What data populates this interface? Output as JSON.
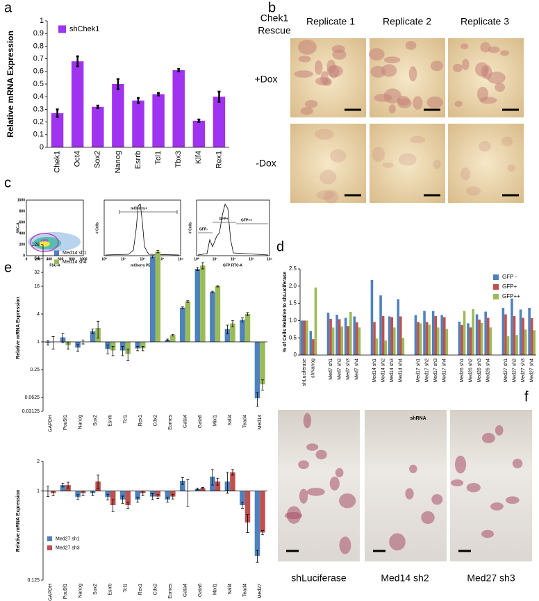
{
  "panel_labels": [
    "a",
    "b",
    "c",
    "d",
    "e",
    "f"
  ],
  "panel_b": {
    "title": [
      "Chek1",
      "Rescue"
    ],
    "columns": [
      "Replicate 1",
      "Replicate 2",
      "Replicate 3"
    ],
    "rows": [
      "+Dox",
      "-Dox"
    ]
  },
  "panel_c": {
    "plots": [
      {
        "xlabel": "FSC-A",
        "ylabel": "SSC-A",
        "gates": [
          "cells"
        ],
        "xticks": [
          "0",
          "200",
          "400",
          "600",
          "800",
          "1000"
        ],
        "yticks": [
          "0",
          "200",
          "400",
          "600",
          "800",
          "1000"
        ]
      },
      {
        "xlabel": "mCherry PE-A",
        "ylabel": "# Cells",
        "gates": [
          "mCherry+"
        ],
        "xticks": [
          "10⁰",
          "10¹",
          "10²",
          "10³",
          "10⁴"
        ]
      },
      {
        "xlabel": "GFP FITC-A",
        "ylabel": "# Cells",
        "gates": [
          "GFP-",
          "GFP+",
          "GFP++"
        ],
        "xticks": [
          "10⁰",
          "10¹",
          "10²",
          "10³",
          "10⁴"
        ]
      }
    ]
  },
  "panel_f": {
    "captions": [
      "shLuciferase",
      "Med14 sh2",
      "Med27 sh3"
    ]
  },
  "chart_data": [
    {
      "type": "bar",
      "ylabel": "Relative mRNA Expression",
      "categories": [
        "Chek1",
        "Oct4",
        "Sox2",
        "Nanog",
        "Esrrb",
        "Tcl1",
        "Tbx3",
        "Klf4",
        "Rex1"
      ],
      "series": [
        {
          "name": "shChek1",
          "color": "#a033f0",
          "values": [
            0.27,
            0.68,
            0.32,
            0.5,
            0.37,
            0.42,
            0.61,
            0.21,
            0.4
          ],
          "errors": [
            0.03,
            0.04,
            0.01,
            0.04,
            0.02,
            0.01,
            0.01,
            0.01,
            0.04
          ]
        }
      ],
      "error_color": "#000000",
      "ylim": [
        0,
        1
      ],
      "yticks": [
        0,
        0.1,
        0.2,
        0.3,
        0.4,
        0.5,
        0.6,
        0.7,
        0.8,
        0.9,
        1
      ],
      "legend": "upper-left"
    },
    {
      "type": "bar",
      "ylabel": "% of Cells Relative to shLuciferase",
      "xlabel": "shRNA",
      "categories": [
        "shLuciferase",
        "shNanog",
        null,
        "Med7 sh1",
        "Med7 sh2",
        "Med7 sh3",
        "Med7 sh4",
        null,
        "Med14 sh1",
        "Med14 sh2",
        "Med14 sh3",
        "Med14 sh4",
        null,
        "Med17 sh1",
        "Med17 sh2",
        "Med17 sh3",
        "Med17 sh4",
        null,
        "Med26 sh1",
        "Med26 sh2",
        "Med26 sh3",
        "Med26 sh4",
        null,
        "Med27 sh1",
        "Med27 sh2",
        "Med27 sh3",
        "Med27 sh4"
      ],
      "series": [
        {
          "name": "GFP -",
          "color": "#4f81bd",
          "values": [
            1.0,
            0.7,
            null,
            1.23,
            1.17,
            1.08,
            1.12,
            null,
            2.18,
            1.73,
            1.12,
            1.62,
            null,
            1.16,
            1.28,
            1.28,
            1.16,
            null,
            0.97,
            0.92,
            1.18,
            1.26,
            null,
            1.37,
            1.64,
            1.32,
            1.37
          ]
        },
        {
          "name": "GFP+",
          "color": "#c0504d",
          "values": [
            1.0,
            0.46,
            null,
            1.05,
            1.04,
            0.84,
            0.95,
            null,
            0.96,
            1.13,
            1.1,
            1.12,
            null,
            0.96,
            0.96,
            1.13,
            1.1,
            null,
            0.87,
            0.8,
            1.03,
            1.08,
            null,
            1.18,
            1.13,
            1.08,
            1.07
          ]
        },
        {
          "name": "GFP++",
          "color": "#9bbb59",
          "values": [
            1.0,
            1.96,
            null,
            0.8,
            0.83,
            1.25,
            0.8,
            null,
            0.48,
            0.42,
            0.8,
            0.5,
            null,
            0.92,
            0.88,
            0.8,
            0.76,
            null,
            1.28,
            1.33,
            0.93,
            0.8,
            null,
            0.55,
            0.58,
            0.74,
            0.72
          ]
        }
      ],
      "ylim": [
        0,
        2.5
      ],
      "yticks": [
        0,
        0.5,
        {
          "value": 1,
          "label": "1.0"
        },
        1.5,
        {
          "value": 2,
          "label": "2.0"
        },
        2.5
      ],
      "legend": "upper-right"
    },
    {
      "type": "bar",
      "ylabel": "Relative mRNA Expression",
      "yscale": "log",
      "log_base": 2,
      "bar_origin": 1,
      "categories": [
        "GAPDH",
        "Pou5f1",
        "Nanog",
        "Sox2",
        "Esrrb",
        "Tcl1",
        "Rex1",
        "Cdx2",
        "Eomes",
        "Gata4",
        "Gata6",
        "Mixl1",
        "Sall4",
        "Tead4",
        "Med14"
      ],
      "series": [
        {
          "name": "Med14 sh1",
          "color": "#4f81bd",
          "values": [
            0.95,
            1.25,
            0.75,
            1.7,
            0.7,
            0.65,
            0.72,
            70,
            1.1,
            5.5,
            38,
            12,
            1.9,
            3,
            0.06
          ],
          "errors": [
            0.1,
            0.3,
            0.12,
            0.2,
            0.15,
            0.15,
            0.08,
            4,
            0.05,
            0.2,
            3,
            0.5,
            0.4,
            0.3,
            0.02
          ]
        },
        {
          "name": "Med14 sh4",
          "color": "#9bbb59",
          "values": [
            1.0,
            0.85,
            1.0,
            2.0,
            0.65,
            0.55,
            0.72,
            90,
            1.4,
            7.5,
            45,
            16,
            2.5,
            4,
            0.12
          ],
          "errors": [
            0.3,
            0.15,
            0.1,
            0.8,
            0.15,
            0.15,
            0.08,
            5,
            0.05,
            0.3,
            7,
            0.5,
            0.4,
            0.3,
            0.03
          ]
        }
      ],
      "error_color": "#000000",
      "ylim": [
        0.03125,
        128
      ],
      "yticks": [
        128,
        64,
        32,
        16,
        4,
        1,
        0.25,
        0.0625,
        0.03125
      ],
      "legend": "upper-left"
    },
    {
      "type": "bar",
      "ylabel": "Relative mRNA Expression",
      "yscale": "log",
      "log_base": 2,
      "bar_origin": 1,
      "categories": [
        "GAPDH",
        "Pou5f1",
        "Nanog",
        "Sox2",
        "Esrrb",
        "Tcl1",
        "Rex1",
        "Cdx2",
        "Eomes",
        "Gata4",
        "Gata6",
        "Mixl1",
        "Sall4",
        "Tead4",
        "Med27"
      ],
      "series": [
        {
          "name": "Med27 sh1",
          "color": "#4f81bd",
          "values": [
            1.0,
            1.15,
            0.87,
            0.95,
            0.87,
            0.82,
            0.82,
            0.88,
            0.82,
            1.27,
            1.05,
            1.4,
            1.25,
            0.72,
            0.22
          ],
          "errors": [
            0.12,
            0.05,
            0.05,
            0.05,
            0.06,
            0.07,
            0.05,
            0.06,
            0.05,
            0.1,
            0.02,
            0.25,
            0.3,
            0.05,
            0.03
          ]
        },
        {
          "name": "Med27 sh3",
          "color": "#c0504d",
          "values": [
            0.95,
            1.15,
            0.95,
            1.25,
            0.72,
            0.72,
            0.95,
            0.88,
            0.88,
            1.0,
            1.07,
            1.25,
            1.55,
            0.48,
            0.38
          ],
          "errors": [
            0.05,
            0.08,
            0.05,
            0.2,
            0.1,
            0.05,
            0.05,
            0.04,
            0.05,
            0.3,
            0.02,
            0.1,
            0.1,
            0.1,
            0.02
          ]
        }
      ],
      "error_color": "#000000",
      "ylim": [
        0.125,
        2
      ],
      "yticks": [
        2,
        1,
        0.125
      ],
      "legend": "center-left"
    }
  ]
}
